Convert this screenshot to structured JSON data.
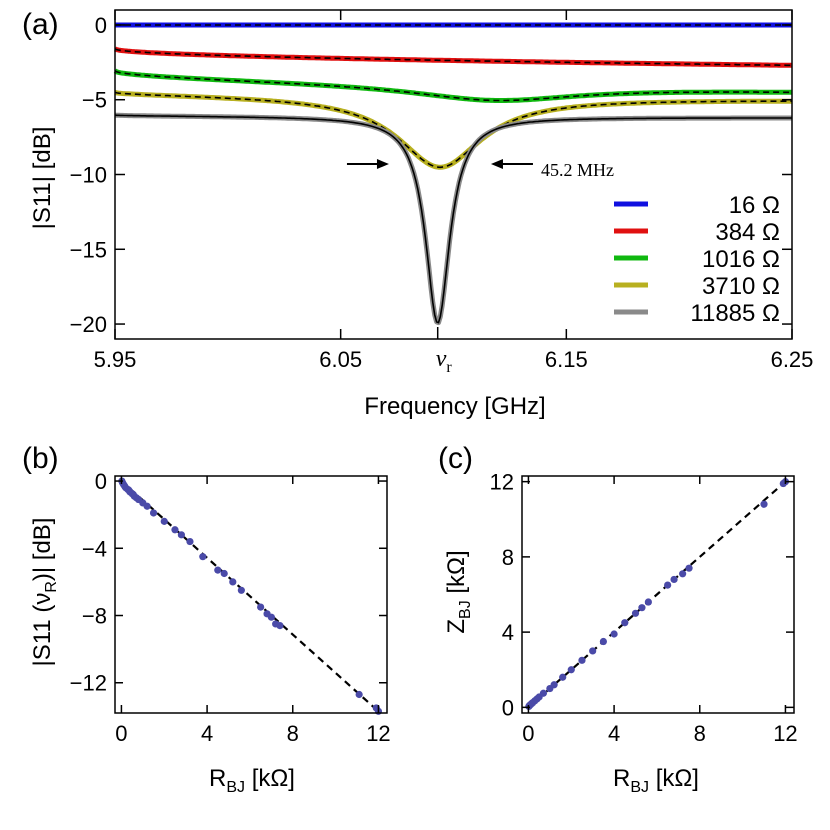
{
  "chart_data": [
    {
      "panel": "(a)",
      "type": "line",
      "xlabel": "Frequency [GHz]",
      "ylabel": "|S11| [dB]",
      "xlim": [
        5.95,
        6.25
      ],
      "ylim": [
        -21,
        1
      ],
      "x_ticks": [
        5.95,
        6.05,
        6.15,
        6.25
      ],
      "x_tick_labels": [
        "5.95",
        "6.05",
        "6.15",
        "6.25"
      ],
      "y_ticks": [
        0,
        -5,
        -10,
        -15,
        -20
      ],
      "y_tick_labels": [
        "0",
        "−5",
        "−10",
        "−15",
        "−20"
      ],
      "resonance_marker": {
        "x": 6.093,
        "label": "ν",
        "label_sub": "r"
      },
      "annotation": {
        "text": "45.2 MHz",
        "center_x": 6.094,
        "y": -9.3,
        "half_width": 0.0226
      },
      "legend_position": "lower-right",
      "series": [
        {
          "name": "16 Ω",
          "color": "#1010e0",
          "baseline_start": 0,
          "baseline_end": 0,
          "dip": 0,
          "center": 6.094,
          "hwhm": 0.04
        },
        {
          "name": "384 Ω",
          "color": "#e01010",
          "baseline_start": -1.6,
          "baseline_end": -2.7,
          "dip": 0,
          "center": 6.094,
          "hwhm": 0.04
        },
        {
          "name": "1016 Ω",
          "color": "#10b810",
          "baseline_start": -3.0,
          "baseline_end": -4.4,
          "dip": 1.0,
          "center": 6.118,
          "hwhm": 0.045
        },
        {
          "name": "3710 Ω",
          "color": "#b8b020",
          "baseline_start": -4.4,
          "baseline_end": -5.0,
          "dip": 4.7,
          "center": 6.094,
          "hwhm": 0.0226
        },
        {
          "name": "11885 Ω",
          "color": "#8a8a8a",
          "baseline_start": -6.0,
          "baseline_end": -6.2,
          "dip": 13.8,
          "center": 6.093,
          "hwhm": 0.0065
        }
      ]
    },
    {
      "panel": "(b)",
      "type": "scatter",
      "xlabel": "R",
      "xlabel_sub": "BJ",
      "xlabel_unit": " [kΩ]",
      "ylabel": "|S11 (ν",
      "ylabel_sub": "R",
      "ylabel_tail": ")| [dB]",
      "xlim": [
        -0.3,
        12.4
      ],
      "ylim": [
        -13.8,
        0.3
      ],
      "x_ticks": [
        0,
        4,
        8,
        12
      ],
      "x_tick_labels": [
        "0",
        "4",
        "8",
        "12"
      ],
      "y_ticks": [
        0,
        -4,
        -8,
        -12
      ],
      "y_tick_labels": [
        "0",
        "−4",
        "−8",
        "−12"
      ],
      "marker_color": "#4a4aa8",
      "fit_line": {
        "x": [
          0,
          12
        ],
        "y": [
          0,
          -13.7
        ]
      },
      "x": [
        0.02,
        0.05,
        0.1,
        0.15,
        0.2,
        0.3,
        0.35,
        0.4,
        0.5,
        0.55,
        0.6,
        0.7,
        0.8,
        1.0,
        1.2,
        1.5,
        2.0,
        2.5,
        2.8,
        3.2,
        3.8,
        4.5,
        4.8,
        5.2,
        5.6,
        6.5,
        6.8,
        7.0,
        7.2,
        7.4,
        11.1,
        11.9,
        12.0
      ],
      "y": [
        0.0,
        -0.1,
        -0.2,
        -0.3,
        -0.4,
        -0.5,
        -0.55,
        -0.65,
        -0.75,
        -0.8,
        -0.9,
        -1.0,
        -1.1,
        -1.3,
        -1.5,
        -1.9,
        -2.4,
        -2.9,
        -3.2,
        -3.6,
        -4.5,
        -5.3,
        -5.5,
        -6.0,
        -6.5,
        -7.5,
        -7.9,
        -8.1,
        -8.5,
        -8.6,
        -12.7,
        -13.5,
        -13.7
      ]
    },
    {
      "panel": "(c)",
      "type": "scatter",
      "xlabel": "R",
      "xlabel_sub": "BJ",
      "xlabel_unit": " [kΩ]",
      "ylabel": "Z",
      "ylabel_sub": "BJ",
      "ylabel_tail": " [kΩ]",
      "xlim": [
        -0.3,
        12.4
      ],
      "ylim": [
        -0.3,
        12.3
      ],
      "x_ticks": [
        0,
        4,
        8,
        12
      ],
      "x_tick_labels": [
        "0",
        "4",
        "8",
        "12"
      ],
      "y_ticks": [
        0,
        4,
        8,
        12
      ],
      "y_tick_labels": [
        "0",
        "4",
        "8",
        "12"
      ],
      "marker_color": "#4a4aa8",
      "fit_line": {
        "x": [
          0,
          12
        ],
        "y": [
          0,
          12
        ]
      },
      "x": [
        0.02,
        0.05,
        0.1,
        0.15,
        0.2,
        0.3,
        0.4,
        0.5,
        0.7,
        1.0,
        1.2,
        1.6,
        2.0,
        2.5,
        3.0,
        3.5,
        4.0,
        4.5,
        5.0,
        5.3,
        5.6,
        6.5,
        6.8,
        7.2,
        7.5,
        11.0,
        11.9,
        12.0
      ],
      "y": [
        0.05,
        0.1,
        0.15,
        0.2,
        0.25,
        0.35,
        0.45,
        0.55,
        0.75,
        1.0,
        1.2,
        1.6,
        2.0,
        2.5,
        3.0,
        3.5,
        3.9,
        4.5,
        5.0,
        5.3,
        5.6,
        6.5,
        6.8,
        7.1,
        7.4,
        10.8,
        11.9,
        12.0
      ]
    }
  ]
}
